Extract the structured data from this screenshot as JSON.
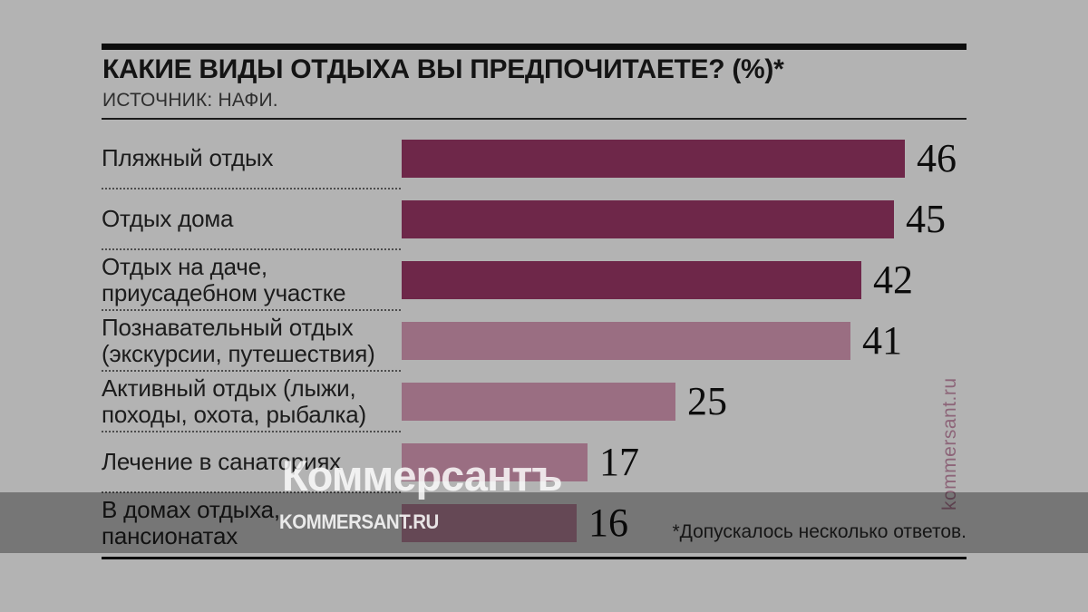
{
  "header": {
    "title": "КАКИЕ ВИДЫ ОТДЫХА ВЫ ПРЕДПОЧИТАЕТЕ? (%)*",
    "source": "ИСТОЧНИК: НАФИ."
  },
  "chart_data": {
    "type": "bar",
    "orientation": "horizontal",
    "unit": "%",
    "title": "КАКИЕ ВИДЫ ОТДЫХА ВЫ ПРЕДПОЧИТАЕТЕ? (%)*",
    "source": "ИСТОЧНИК: НАФИ.",
    "xlim": [
      0,
      46
    ],
    "grid": false,
    "legend": false,
    "categories": [
      "Пляжный отдых",
      "Отдых дома",
      "Отдых на даче, приусадебном участке",
      "Познавательный отдых (экскурсии, путешествия)",
      "Активный отдых (лыжи, походы, охота, рыбалка)",
      "Лечение в санаториях",
      "В домах отдыха, пансионатах"
    ],
    "values": [
      46,
      45,
      42,
      41,
      25,
      17,
      16
    ],
    "items": [
      {
        "label_lines": [
          "Пляжный отдых"
        ],
        "value": 46,
        "tone": "dark"
      },
      {
        "label_lines": [
          "Отдых дома"
        ],
        "value": 45,
        "tone": "dark"
      },
      {
        "label_lines": [
          "Отдых на даче,",
          "приусадебном участке"
        ],
        "value": 42,
        "tone": "dark"
      },
      {
        "label_lines": [
          "Познавательный отдых",
          "(экскурсии, путешествия)"
        ],
        "value": 41,
        "tone": "light"
      },
      {
        "label_lines": [
          "Активный отдых (лыжи,",
          "походы, охота, рыбалка)"
        ],
        "value": 25,
        "tone": "light"
      },
      {
        "label_lines": [
          "Лечение в санаториях"
        ],
        "value": 17,
        "tone": "light"
      },
      {
        "label_lines": [
          "В домах отдыха,",
          "пансионатах"
        ],
        "value": 16,
        "tone": "light"
      }
    ],
    "colors": {
      "dark": "#6e2749",
      "light": "#9a6e82"
    }
  },
  "footnote": "*Допускалось несколько ответов.",
  "watermarks": {
    "logo": "Коммерсантъ",
    "site": "KOMMERSANT.RU",
    "vertical": "kommersant.ru"
  },
  "palette": {
    "background": "#b3b3b3",
    "bar_dark": "#6e2749",
    "bar_light": "#9a6e82",
    "rule_black": "#0d0d0d",
    "band_overlay": "rgba(0,0,0,0.34)",
    "watermark_white": "rgba(255,255,255,0.82)",
    "watermark_plum": "rgba(110,37,73,0.55)"
  }
}
